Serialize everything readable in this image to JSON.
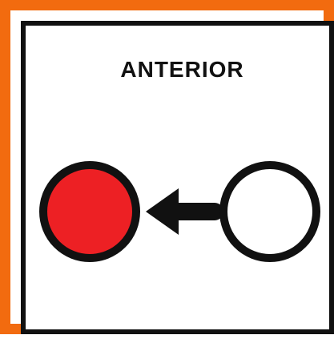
{
  "title": "ANTERIOR",
  "colors": {
    "frame": "#f26b0f",
    "outline": "#111111",
    "filled_circle": "#ed2024",
    "empty_circle": "#ffffff",
    "arrow": "#111111",
    "background": "#ffffff"
  },
  "icons": {
    "filled_circle": "red-circle-icon",
    "empty_circle": "white-circle-icon",
    "arrow": "arrow-left-icon"
  }
}
